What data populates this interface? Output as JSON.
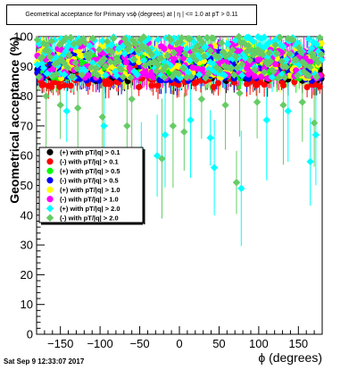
{
  "chart_data": {
    "type": "scatter",
    "title": "Geometrical acceptance for Primary vsϕ (degrees) at | η | <= 1.0 at pT > 0.11",
    "xlabel": "ϕ (degrees)",
    "ylabel": "Geometrical acceptance (%)",
    "xlim": [
      -180,
      180
    ],
    "ylim": [
      0,
      100
    ],
    "xticks": [
      "−150",
      "−100",
      "−50",
      "0",
      "50",
      "100",
      "150"
    ],
    "xtick_values": [
      -150,
      -100,
      -50,
      0,
      50,
      100,
      150
    ],
    "yticks": [
      "0",
      "10",
      "20",
      "30",
      "40",
      "50",
      "60",
      "70",
      "80",
      "90",
      "100"
    ],
    "ytick_values": [
      0,
      10,
      20,
      30,
      40,
      50,
      60,
      70,
      80,
      90,
      100
    ],
    "grid": false,
    "legend_position": "left",
    "series": [
      {
        "name": "(+) with pT/|q| > 0.1",
        "color": "#000000",
        "marker": "circle",
        "base": 88,
        "spread": 3
      },
      {
        "name": "(-) with pT/|q| > 0.1",
        "color": "#ff0000",
        "marker": "circle",
        "base": 87,
        "spread": 4
      },
      {
        "name": "(+) with pT/|q| > 0.5",
        "color": "#00ff00",
        "marker": "circle",
        "base": 91,
        "spread": 5
      },
      {
        "name": "(-) with pT/|q| > 0.5",
        "color": "#0000ff",
        "marker": "circle",
        "base": 90,
        "spread": 5
      },
      {
        "name": "(+) with pT/|q| > 1.0",
        "color": "#ffff00",
        "marker": "circle",
        "base": 92,
        "spread": 6
      },
      {
        "name": "(-) with pT/|q| > 1.0",
        "color": "#ff00ff",
        "marker": "circle",
        "base": 92,
        "spread": 6
      },
      {
        "name": "(+) with pT/|q| > 2.0",
        "color": "#00ffff",
        "marker": "diamond",
        "base": 93,
        "spread": 7
      },
      {
        "name": "(-) with pT/|q| > 2.0",
        "color": "#66cc66",
        "marker": "diamond",
        "base": 93,
        "spread": 7
      }
    ],
    "outliers": {
      "(+) with pT/|q| > 2.0": [
        [
          -142,
          75
        ],
        [
          -95,
          70
        ],
        [
          -48,
          62
        ],
        [
          -28,
          60
        ],
        [
          -18,
          67
        ],
        [
          14,
          72
        ],
        [
          39,
          66
        ],
        [
          44,
          56
        ],
        [
          78,
          49
        ],
        [
          110,
          72
        ],
        [
          137,
          75
        ],
        [
          165,
          58
        ],
        [
          172,
          67
        ]
      ],
      "(-) with pT/|q| > 2.0": [
        [
          -168,
          80
        ],
        [
          -150,
          77
        ],
        [
          -128,
          76
        ],
        [
          -97,
          73
        ],
        [
          -60,
          79
        ],
        [
          -22,
          59
        ],
        [
          -8,
          70
        ],
        [
          6,
          68
        ],
        [
          28,
          79
        ],
        [
          58,
          77
        ],
        [
          76,
          81
        ],
        [
          98,
          78
        ],
        [
          131,
          77
        ],
        [
          155,
          78
        ],
        [
          170,
          71
        ],
        [
          72,
          51
        ],
        [
          -66,
          70
        ]
      ]
    }
  },
  "footer": {
    "datestamp": "Sat Sep  9 12:33:07 2017"
  }
}
